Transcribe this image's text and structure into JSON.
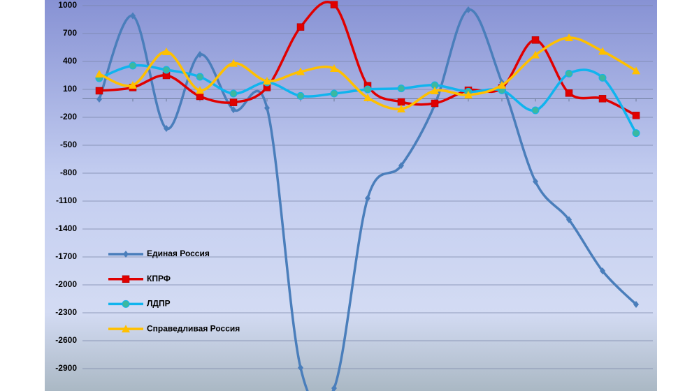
{
  "chart_data": {
    "type": "line",
    "categories": [
      null,
      null,
      null,
      null,
      null,
      null,
      null,
      null,
      null,
      null,
      null,
      null,
      null,
      null,
      null,
      null,
      null
    ],
    "series": [
      {
        "name": "Единая Россия",
        "color": "#4a7ebb",
        "marker": "diamond",
        "values": [
          -5,
          890,
          -320,
          475,
          -118,
          -100,
          -2890,
          -3110,
          -1070,
          -718,
          -65,
          955,
          175,
          -890,
          -1300,
          -1850,
          -2210
        ]
      },
      {
        "name": "КПРФ",
        "color": "#e00000",
        "marker": "square",
        "values": [
          85,
          120,
          250,
          25,
          -40,
          120,
          770,
          1010,
          140,
          -35,
          -50,
          90,
          115,
          630,
          60,
          0,
          -180
        ]
      },
      {
        "name": "ЛДПР",
        "color": "#10b4ee",
        "marker": "circle",
        "values": [
          220,
          355,
          310,
          235,
          55,
          175,
          30,
          55,
          100,
          110,
          145,
          75,
          90,
          -125,
          270,
          225,
          -370
        ]
      },
      {
        "name": "Справедливая Россия",
        "color": "#ffc000",
        "marker": "triangle",
        "values": [
          265,
          145,
          505,
          90,
          380,
          190,
          290,
          325,
          10,
          -110,
          85,
          40,
          145,
          470,
          655,
          510,
          300
        ]
      }
    ],
    "ylim": [
      -3140,
      1060
    ],
    "yticks": [
      1000,
      700,
      400,
      100,
      -200,
      -500,
      -800,
      -1100,
      -1400,
      -1700,
      -2000,
      -2300,
      -2600,
      -2900
    ],
    "grid": true
  }
}
